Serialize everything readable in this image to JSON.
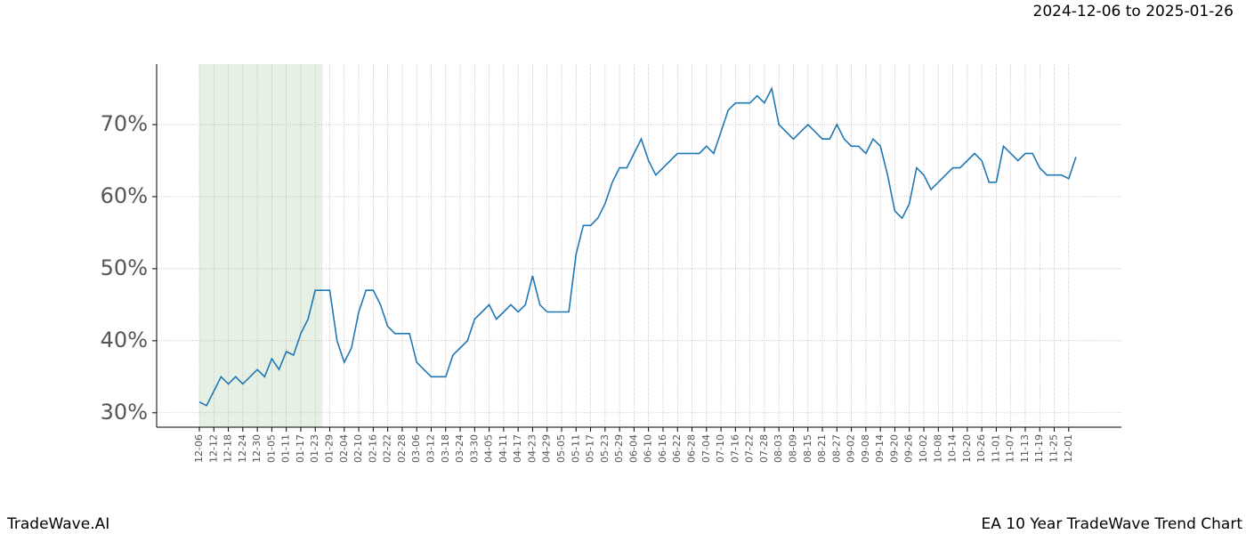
{
  "header": {
    "date_range": "2024-12-06 to 2025-01-26"
  },
  "footer": {
    "left": "TradeWave.AI",
    "right": "EA 10 Year TradeWave Trend Chart"
  },
  "chart_data": {
    "type": "line",
    "categories": [
      "12-06",
      null,
      "12-12",
      null,
      "12-18",
      null,
      "12-24",
      null,
      "12-30",
      null,
      "01-05",
      null,
      "01-11",
      null,
      "01-17",
      null,
      "01-23",
      null,
      "01-29",
      null,
      "02-04",
      null,
      "02-10",
      null,
      "02-16",
      null,
      "02-22",
      null,
      "02-28",
      null,
      "03-06",
      null,
      "03-12",
      null,
      "03-18",
      null,
      "03-24",
      null,
      "03-30",
      null,
      "04-05",
      null,
      "04-11",
      null,
      "04-17",
      null,
      "04-23",
      null,
      "04-29",
      null,
      "05-05",
      null,
      "05-11",
      null,
      "05-17",
      null,
      "05-23",
      null,
      "05-29",
      null,
      "06-04",
      null,
      "06-10",
      null,
      "06-16",
      null,
      "06-22",
      null,
      "06-28",
      null,
      "07-04",
      null,
      "07-10",
      null,
      "07-16",
      null,
      "07-22",
      null,
      "07-28",
      null,
      "08-03",
      null,
      "08-09",
      null,
      "08-15",
      null,
      "08-21",
      null,
      "08-27",
      null,
      "09-02",
      null,
      "09-08",
      null,
      "09-14",
      null,
      "09-20",
      null,
      "09-26",
      null,
      "10-02",
      null,
      "10-08",
      null,
      "10-14",
      null,
      "10-20",
      null,
      "10-26",
      null,
      "11-01",
      null,
      "11-07",
      null,
      "11-13",
      null,
      "11-19",
      null,
      "11-25",
      null,
      "12-01",
      null
    ],
    "series": [
      {
        "color": "#1f77b4",
        "values": [
          31.5,
          31,
          33,
          35,
          34,
          35,
          34,
          35,
          36,
          35,
          37.5,
          36,
          38.5,
          38,
          41,
          43,
          47,
          47,
          47,
          40,
          37,
          39,
          44,
          47,
          47,
          45,
          42,
          41,
          41,
          41,
          37,
          36,
          35,
          35,
          35,
          38,
          39,
          40,
          43,
          44,
          45,
          43,
          44,
          45,
          44,
          45,
          49,
          45,
          44,
          44,
          44,
          44,
          52,
          56,
          56,
          57,
          59,
          62,
          64,
          64,
          66,
          68,
          65,
          63,
          64,
          65,
          66,
          66,
          66,
          66,
          67,
          66,
          69,
          72,
          73,
          73,
          73,
          74,
          73,
          75,
          70,
          69,
          68,
          69,
          70,
          69,
          68,
          68,
          70,
          68,
          67,
          67,
          66,
          68,
          67,
          63,
          58,
          57,
          59,
          64,
          63,
          61,
          62,
          63,
          64,
          64,
          65,
          66,
          65,
          62,
          62,
          67,
          66,
          65,
          66,
          66,
          64,
          63,
          63,
          63,
          62.5,
          65.5
        ]
      }
    ],
    "ylim": [
      28,
      78.4
    ],
    "yticks": [
      {
        "value": 30,
        "label": "30%"
      },
      {
        "value": 40,
        "label": "40%"
      },
      {
        "value": 50,
        "label": "50%"
      },
      {
        "value": 60,
        "label": "60%"
      },
      {
        "value": 70,
        "label": "70%"
      }
    ],
    "shade": {
      "from": 0,
      "to": 17,
      "color": "#e6f0e4"
    },
    "grid": true
  }
}
